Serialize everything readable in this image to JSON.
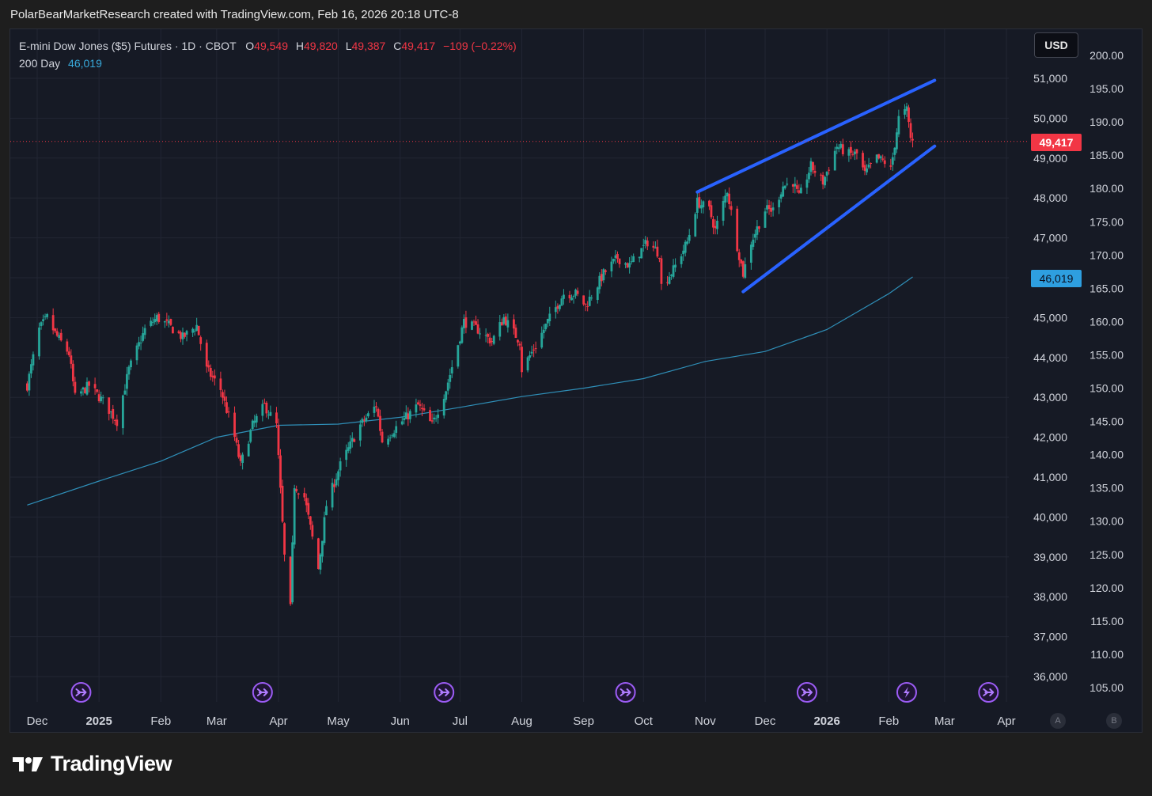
{
  "header": {
    "attribution": "PolarBearMarketResearch created with TradingView.com, Feb 16, 2026 20:18 UTC-8"
  },
  "legend": {
    "symbol": "E-mini Dow Jones ($5) Futures · 1D · CBOT",
    "o_label": "O",
    "o_value": "49,549",
    "h_label": "H",
    "h_value": "49,820",
    "l_label": "L",
    "l_value": "49,387",
    "c_label": "C",
    "c_value": "49,417",
    "change": "−109 (−0.22%)",
    "ma_label": "200 Day",
    "ma_value": "46,019"
  },
  "currency_button": "USD",
  "last_price_tag": "49,417",
  "ma_price_tag": "46,019",
  "footer": {
    "brand": "TradingView",
    "logo_icon": "tradingview-logo-icon"
  },
  "scale_buttons": [
    "A",
    "B"
  ],
  "colors": {
    "up": "#26a69a",
    "down": "#f23645",
    "ma": "#2f8fb8",
    "trendline": "#2962ff",
    "background": "#161a25"
  },
  "chart_data": {
    "type": "candlestick",
    "title": "E-mini Dow Jones ($5) Futures · 1D · CBOT",
    "ylabel": "",
    "xlabel": "",
    "ylim": [
      35700,
      51600
    ],
    "grid": true,
    "x_ticks": [
      "Dec",
      "2025",
      "Feb",
      "Mar",
      "Apr",
      "May",
      "Jun",
      "Jul",
      "Aug",
      "Sep",
      "Oct",
      "Nov",
      "Dec",
      "2026",
      "Feb",
      "Mar",
      "Apr"
    ],
    "y_ticks_left": [
      "36,000",
      "37,000",
      "38,000",
      "39,000",
      "40,000",
      "41,000",
      "42,000",
      "43,000",
      "44,000",
      "45,000",
      "46,000",
      "47,000",
      "48,000",
      "49,000",
      "50,000",
      "51,000"
    ],
    "y_ticks_right": [
      "105.00",
      "110.00",
      "115.00",
      "120.00",
      "125.00",
      "130.00",
      "135.00",
      "140.00",
      "145.00",
      "150.00",
      "155.00",
      "160.00",
      "165.00",
      "170.00",
      "175.00",
      "180.00",
      "185.00",
      "190.00",
      "195.00",
      "200.00"
    ],
    "series": [
      {
        "name": "E-mini Dow Jones ($5) Futures",
        "kind": "close_path",
        "points": [
          [
            "2024-11-26",
            43300
          ],
          [
            "2024-12-02",
            44700
          ],
          [
            "2024-12-06",
            45000
          ],
          [
            "2024-12-10",
            44600
          ],
          [
            "2024-12-17",
            44100
          ],
          [
            "2024-12-20",
            43000
          ],
          [
            "2024-12-27",
            43300
          ],
          [
            "2025-01-03",
            42900
          ],
          [
            "2025-01-10",
            42400
          ],
          [
            "2025-01-16",
            43700
          ],
          [
            "2025-01-24",
            44700
          ],
          [
            "2025-01-30",
            45000
          ],
          [
            "2025-02-05",
            44800
          ],
          [
            "2025-02-12",
            44500
          ],
          [
            "2025-02-19",
            44800
          ],
          [
            "2025-02-24",
            43700
          ],
          [
            "2025-03-03",
            43200
          ],
          [
            "2025-03-10",
            42000
          ],
          [
            "2025-03-13",
            41300
          ],
          [
            "2025-03-19",
            42300
          ],
          [
            "2025-03-25",
            42800
          ],
          [
            "2025-03-31",
            42300
          ],
          [
            "2025-04-04",
            39000
          ],
          [
            "2025-04-07",
            37700
          ],
          [
            "2025-04-09",
            40800
          ],
          [
            "2025-04-14",
            40500
          ],
          [
            "2025-04-21",
            38700
          ],
          [
            "2025-04-25",
            40300
          ],
          [
            "2025-05-02",
            41300
          ],
          [
            "2025-05-12",
            42300
          ],
          [
            "2025-05-20",
            42800
          ],
          [
            "2025-05-23",
            41900
          ],
          [
            "2025-06-02",
            42400
          ],
          [
            "2025-06-10",
            42800
          ],
          [
            "2025-06-17",
            42300
          ],
          [
            "2025-06-24",
            43200
          ],
          [
            "2025-07-03",
            44900
          ],
          [
            "2025-07-10",
            44700
          ],
          [
            "2025-07-17",
            44400
          ],
          [
            "2025-07-23",
            45000
          ],
          [
            "2025-07-31",
            44400
          ],
          [
            "2025-08-01",
            43700
          ],
          [
            "2025-08-08",
            44300
          ],
          [
            "2025-08-14",
            44900
          ],
          [
            "2025-08-22",
            45600
          ],
          [
            "2025-08-28",
            45600
          ],
          [
            "2025-09-02",
            45300
          ],
          [
            "2025-09-11",
            46100
          ],
          [
            "2025-09-18",
            46500
          ],
          [
            "2025-09-24",
            46300
          ],
          [
            "2025-10-03",
            46900
          ],
          [
            "2025-10-09",
            46600
          ],
          [
            "2025-10-10",
            45800
          ],
          [
            "2025-10-16",
            46200
          ],
          [
            "2025-10-23",
            46900
          ],
          [
            "2025-10-28",
            47900
          ],
          [
            "2025-11-03",
            47700
          ],
          [
            "2025-11-06",
            47200
          ],
          [
            "2025-11-12",
            48200
          ],
          [
            "2025-11-17",
            46800
          ],
          [
            "2025-11-20",
            46100
          ],
          [
            "2025-11-24",
            46900
          ],
          [
            "2025-12-01",
            47700
          ],
          [
            "2025-12-05",
            47700
          ],
          [
            "2025-12-10",
            48300
          ],
          [
            "2025-12-15",
            48400
          ],
          [
            "2025-12-18",
            48000
          ],
          [
            "2025-12-24",
            48800
          ],
          [
            "2025-12-30",
            48400
          ],
          [
            "2026-01-06",
            49300
          ],
          [
            "2026-01-12",
            49100
          ],
          [
            "2026-01-16",
            49100
          ],
          [
            "2026-01-20",
            48600
          ],
          [
            "2026-01-26",
            49000
          ],
          [
            "2026-01-30",
            48900
          ],
          [
            "2026-02-02",
            48700
          ],
          [
            "2026-02-06",
            50000
          ],
          [
            "2026-02-10",
            50200
          ],
          [
            "2026-02-12",
            49500
          ],
          [
            "2026-02-13",
            49417
          ]
        ]
      },
      {
        "name": "200 Day",
        "kind": "moving_average",
        "points": [
          [
            "2024-11-26",
            40300
          ],
          [
            "2025-01-01",
            40900
          ],
          [
            "2025-02-01",
            41400
          ],
          [
            "2025-03-01",
            42000
          ],
          [
            "2025-04-01",
            42300
          ],
          [
            "2025-05-01",
            42330
          ],
          [
            "2025-06-01",
            42500
          ],
          [
            "2025-07-01",
            42750
          ],
          [
            "2025-08-01",
            43020
          ],
          [
            "2025-09-01",
            43230
          ],
          [
            "2025-10-01",
            43470
          ],
          [
            "2025-11-01",
            43900
          ],
          [
            "2025-12-01",
            44150
          ],
          [
            "2026-01-01",
            44700
          ],
          [
            "2026-02-01",
            45600
          ],
          [
            "2026-02-13",
            46019
          ]
        ]
      }
    ],
    "trendlines": [
      {
        "name": "upper-wedge-line",
        "from": [
          "2025-10-28",
          48150
        ],
        "to": [
          "2026-02-24",
          50950
        ]
      },
      {
        "name": "lower-wedge-line",
        "from": [
          "2025-11-20",
          45650
        ],
        "to": [
          "2026-02-24",
          49300
        ]
      }
    ],
    "event_markers": [
      {
        "date": "2024-12-23",
        "icon": "dividend-arrow-icon"
      },
      {
        "date": "2025-03-24",
        "icon": "dividend-arrow-icon"
      },
      {
        "date": "2025-06-23",
        "icon": "dividend-arrow-icon"
      },
      {
        "date": "2025-09-22",
        "icon": "dividend-arrow-icon"
      },
      {
        "date": "2025-12-22",
        "icon": "dividend-arrow-icon"
      },
      {
        "date": "2026-02-10",
        "icon": "lightning-icon"
      },
      {
        "date": "2026-03-23",
        "icon": "dividend-arrow-icon"
      }
    ],
    "last_price": 49417,
    "ma_last": 46019
  }
}
